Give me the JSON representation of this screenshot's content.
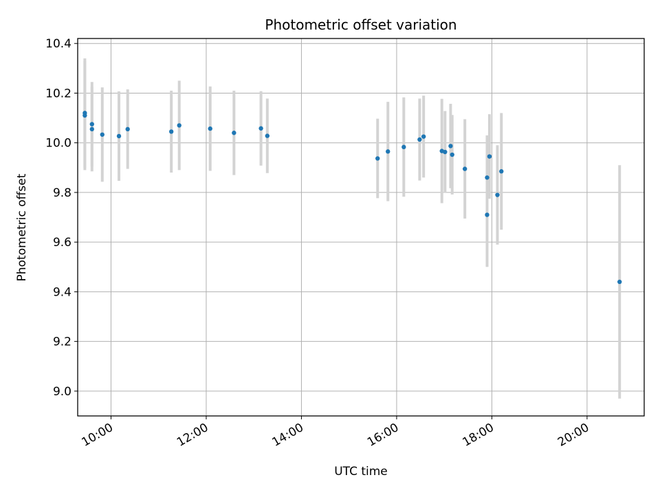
{
  "chart_data": {
    "type": "scatter",
    "title": "Photometric offset variation",
    "xlabel": "UTC time",
    "ylabel": "Photometric offset",
    "x_unit": "hours UTC",
    "xlim": [
      "09:18",
      "21:12"
    ],
    "ylim": [
      8.9,
      10.42
    ],
    "x_ticks": [
      {
        "label": "10:00",
        "hour": 10
      },
      {
        "label": "12:00",
        "hour": 12
      },
      {
        "label": "14:00",
        "hour": 14
      },
      {
        "label": "16:00",
        "hour": 16
      },
      {
        "label": "18:00",
        "hour": 18
      },
      {
        "label": "20:00",
        "hour": 20
      }
    ],
    "y_ticks": [
      "9.0",
      "9.2",
      "9.4",
      "9.6",
      "9.8",
      "10.0",
      "10.2",
      "10.4"
    ],
    "grid": true,
    "marker_color": "#1f77b4",
    "errorbar_color": "#d3d3d3",
    "points": [
      {
        "time": "09:27",
        "y": 10.12,
        "err": 0.22
      },
      {
        "time": "09:27",
        "y": 10.11,
        "err": 0.22
      },
      {
        "time": "09:36",
        "y": 10.075,
        "err": 0.17
      },
      {
        "time": "09:36",
        "y": 10.055,
        "err": 0.17
      },
      {
        "time": "09:49",
        "y": 10.033,
        "err": 0.19
      },
      {
        "time": "10:10",
        "y": 10.027,
        "err": 0.18
      },
      {
        "time": "10:21",
        "y": 10.055,
        "err": 0.16
      },
      {
        "time": "11:16",
        "y": 10.045,
        "err": 0.165
      },
      {
        "time": "11:26",
        "y": 10.07,
        "err": 0.18
      },
      {
        "time": "12:05",
        "y": 10.057,
        "err": 0.17
      },
      {
        "time": "12:35",
        "y": 10.04,
        "err": 0.17
      },
      {
        "time": "13:09",
        "y": 10.058,
        "err": 0.15
      },
      {
        "time": "13:17",
        "y": 10.028,
        "err": 0.15
      },
      {
        "time": "15:36",
        "y": 9.937,
        "err": 0.16
      },
      {
        "time": "15:49",
        "y": 9.965,
        "err": 0.2
      },
      {
        "time": "16:09",
        "y": 9.983,
        "err": 0.2
      },
      {
        "time": "16:29",
        "y": 10.013,
        "err": 0.165
      },
      {
        "time": "16:34",
        "y": 10.025,
        "err": 0.165
      },
      {
        "time": "16:57",
        "y": 9.967,
        "err": 0.21
      },
      {
        "time": "17:01",
        "y": 9.963,
        "err": 0.165
      },
      {
        "time": "17:08",
        "y": 9.987,
        "err": 0.17
      },
      {
        "time": "17:10",
        "y": 9.952,
        "err": 0.16
      },
      {
        "time": "17:26",
        "y": 9.895,
        "err": 0.2
      },
      {
        "time": "17:54",
        "y": 9.86,
        "err": 0.17
      },
      {
        "time": "17:54",
        "y": 9.71,
        "err": 0.21
      },
      {
        "time": "17:57",
        "y": 9.945,
        "err": 0.17
      },
      {
        "time": "18:07",
        "y": 9.79,
        "err": 0.2
      },
      {
        "time": "18:12",
        "y": 9.885,
        "err": 0.235
      },
      {
        "time": "20:41",
        "y": 9.44,
        "err": 0.47
      }
    ]
  }
}
